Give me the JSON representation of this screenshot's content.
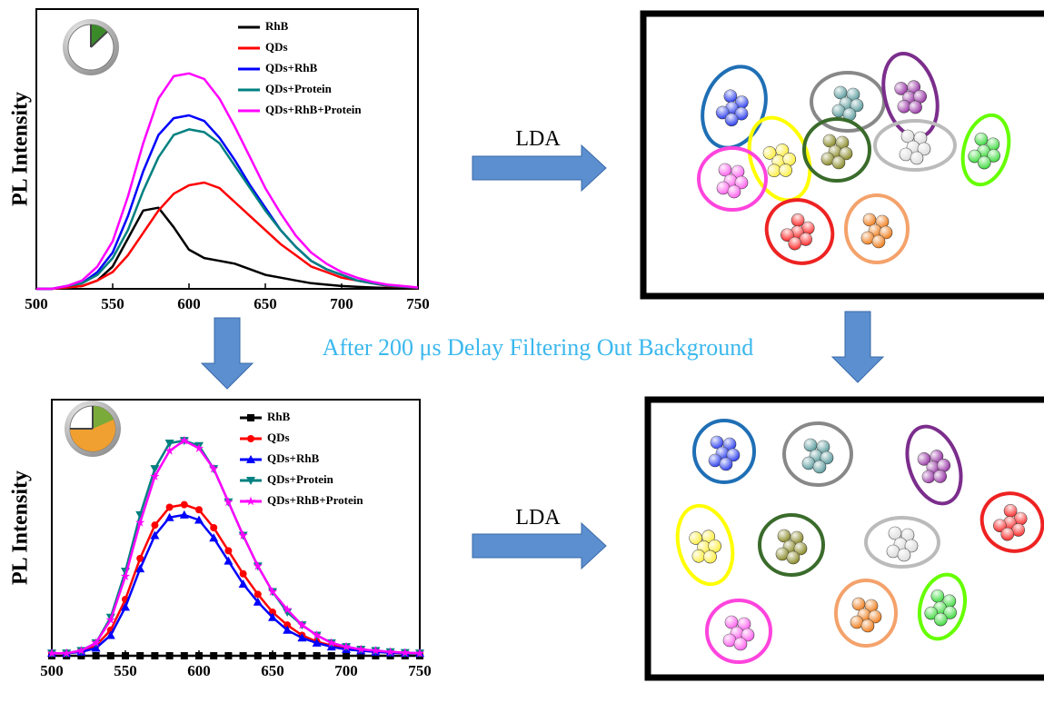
{
  "chart_data": [
    {
      "type": "line",
      "ylabel": "PL Intensity",
      "xlim": [
        500,
        750
      ],
      "xticks": [
        500,
        550,
        600,
        650,
        700,
        750
      ],
      "ylim": [
        0,
        100
      ],
      "legend": "upper right",
      "x": [
        500,
        510,
        520,
        530,
        540,
        550,
        560,
        570,
        580,
        590,
        600,
        610,
        620,
        630,
        640,
        650,
        660,
        670,
        680,
        690,
        700,
        710,
        720,
        730,
        740,
        750
      ],
      "series": [
        {
          "name": "RhB",
          "color": "#000000",
          "values": [
            0,
            0,
            0.5,
            1,
            3,
            8,
            18,
            28,
            29,
            22,
            14,
            11,
            10,
            9,
            7,
            5,
            4,
            3,
            2,
            1.5,
            1,
            0.7,
            0.5,
            0.3,
            0.2,
            0.1
          ]
        },
        {
          "name": "QDs",
          "color": "#ff0000",
          "values": [
            0,
            0,
            0.5,
            1,
            3,
            6,
            12,
            20,
            28,
            34,
            37,
            38,
            36,
            31,
            26,
            21,
            16,
            12,
            8,
            6,
            4,
            3,
            2,
            1,
            0.7,
            0.3
          ]
        },
        {
          "name": "QDs+RhB",
          "color": "#0000ff",
          "values": [
            0,
            0,
            1,
            2,
            6,
            13,
            26,
            42,
            55,
            61,
            62,
            60,
            54,
            46,
            37,
            29,
            21,
            15,
            10,
            7,
            5,
            3,
            2,
            1.2,
            0.8,
            0.4
          ]
        },
        {
          "name": "QDs+Protein",
          "color": "#008080",
          "values": [
            0,
            0,
            1,
            2,
            5,
            11,
            21,
            35,
            47,
            55,
            57,
            56,
            52,
            44,
            36,
            28,
            21,
            15,
            10,
            7,
            5,
            3,
            2,
            1.2,
            0.8,
            0.4
          ]
        },
        {
          "name": "QDs+RhB+Protein",
          "color": "#ff00ff",
          "values": [
            0,
            0,
            1,
            3,
            8,
            17,
            33,
            52,
            68,
            76,
            77,
            75,
            68,
            58,
            47,
            36,
            27,
            19,
            13,
            9,
            6,
            4,
            2.5,
            1.5,
            1,
            0.5
          ]
        }
      ]
    },
    {
      "type": "line",
      "ylabel": "PL Intensity",
      "xlim": [
        500,
        750
      ],
      "xticks": [
        500,
        550,
        600,
        650,
        700,
        750
      ],
      "ylim": [
        0,
        100
      ],
      "legend": "upper right",
      "x": [
        500,
        510,
        520,
        530,
        540,
        550,
        560,
        570,
        580,
        590,
        600,
        610,
        620,
        630,
        640,
        650,
        660,
        670,
        680,
        690,
        700,
        710,
        720,
        730,
        740,
        750
      ],
      "series": [
        {
          "name": "RhB",
          "color": "#000000",
          "marker": "square",
          "values": [
            0,
            0,
            0,
            0,
            0,
            0,
            0,
            0,
            0,
            0,
            0,
            0,
            0,
            0,
            0,
            0,
            0,
            0,
            0,
            0,
            0,
            0,
            0,
            0,
            0,
            0
          ]
        },
        {
          "name": "QDs",
          "color": "#ff0000",
          "marker": "circle",
          "values": [
            1,
            1,
            2,
            4,
            10,
            22,
            38,
            51,
            58,
            59,
            57,
            50,
            41,
            32,
            24,
            17,
            12,
            8,
            5.5,
            4,
            3,
            2,
            1.7,
            1.3,
            1.1,
            1
          ]
        },
        {
          "name": "QDs+RhB",
          "color": "#0000ff",
          "marker": "triangle-up",
          "values": [
            1,
            1,
            1.5,
            3,
            8,
            19,
            34,
            47,
            54,
            55,
            53,
            46,
            37,
            28,
            21,
            15,
            10,
            7,
            5,
            3.5,
            2.5,
            2,
            1.5,
            1.2,
            1,
            1
          ]
        },
        {
          "name": "QDs+Protein",
          "color": "#008080",
          "marker": "triangle-down",
          "values": [
            1,
            1,
            2,
            5,
            15,
            33,
            55,
            73,
            83,
            84,
            82,
            73,
            60,
            47,
            35,
            25,
            17,
            12,
            8,
            5,
            3.5,
            2.5,
            2,
            1.5,
            1.2,
            1
          ]
        },
        {
          "name": "QDs+RhB+Protein",
          "color": "#ff00ff",
          "marker": "star",
          "values": [
            1,
            1,
            2,
            5,
            14,
            31,
            52,
            70,
            80,
            84,
            81,
            73,
            60,
            47,
            35,
            25,
            18,
            12,
            8,
            5,
            3.5,
            2.5,
            2,
            1.5,
            1.2,
            1
          ]
        }
      ]
    }
  ],
  "annotations": [
    "LDA",
    "After 200 μs Delay Filtering Out Background",
    "LDA"
  ]
}
